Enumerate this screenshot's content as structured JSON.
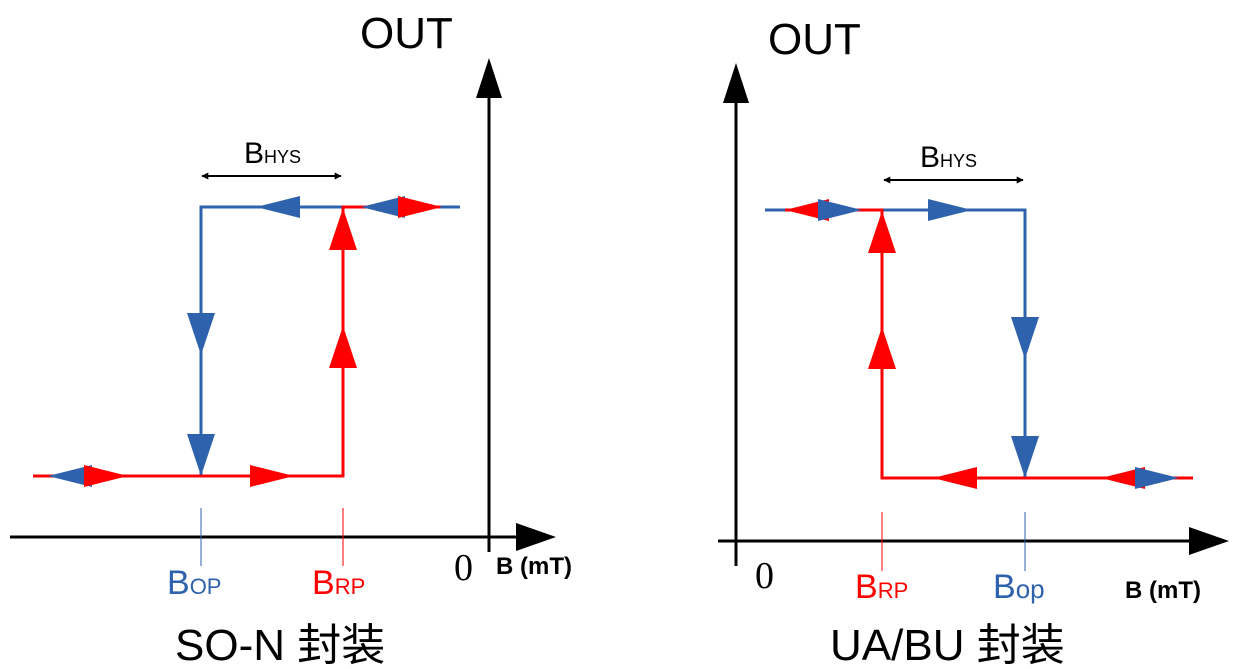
{
  "colors": {
    "axis": "#000000",
    "blue": "#2e62ad",
    "red": "#ff0000"
  },
  "left": {
    "y_axis_label": "OUT",
    "x_axis_label": "B (mT)",
    "origin_label": "0",
    "hys": {
      "main": "B",
      "sub": "HYS"
    },
    "op": {
      "main": "B",
      "sub": "OP"
    },
    "rp": {
      "main": "B",
      "sub": "RP"
    },
    "caption": "SO-N 封装"
  },
  "right": {
    "y_axis_label": "OUT",
    "x_axis_label": "B (mT)",
    "origin_label": "0",
    "hys": {
      "main": "B",
      "sub": "HYS"
    },
    "rp": {
      "main": "B",
      "sub": "RP"
    },
    "op": {
      "main": "B",
      "sub": "op"
    },
    "caption": "UA/BU 封装"
  }
}
